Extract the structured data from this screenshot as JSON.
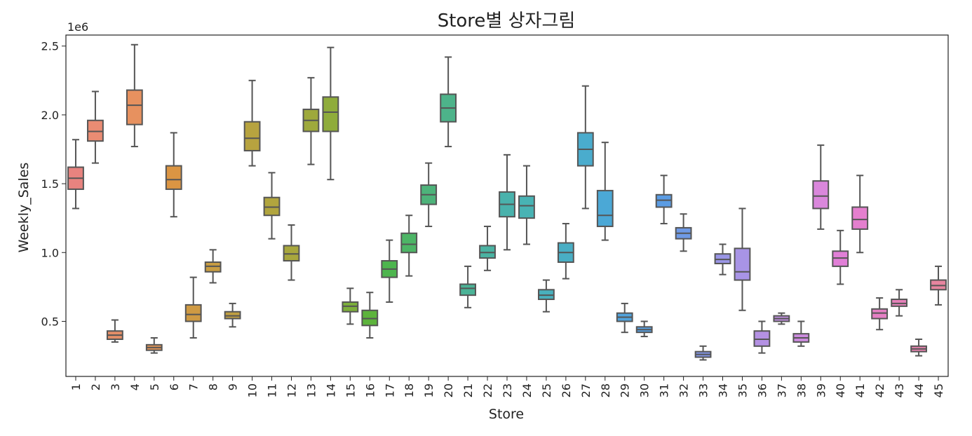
{
  "chart_data": {
    "type": "box",
    "title": "Store별 상자그림",
    "xlabel": "Store",
    "ylabel": "Weekly_Sales",
    "y_offset_label": "1e6",
    "y_scale": 1000000,
    "ylim": [
      0.1,
      2.58
    ],
    "yticks": [
      "0.5",
      "1.0",
      "1.5",
      "2.0",
      "2.5"
    ],
    "grid": false,
    "stores": [
      {
        "label": "1",
        "min": 1.32,
        "q1": 1.46,
        "median": 1.54,
        "q3": 1.62,
        "max": 1.82,
        "color": "#e8837f"
      },
      {
        "label": "2",
        "min": 1.65,
        "q1": 1.81,
        "median": 1.88,
        "q3": 1.96,
        "max": 2.17,
        "color": "#ea8c73"
      },
      {
        "label": "3",
        "min": 0.35,
        "q1": 0.37,
        "median": 0.4,
        "q3": 0.43,
        "max": 0.51,
        "color": "#e58f68"
      },
      {
        "label": "4",
        "min": 1.77,
        "q1": 1.93,
        "median": 2.07,
        "q3": 2.18,
        "max": 2.51,
        "color": "#e7915f"
      },
      {
        "label": "5",
        "min": 0.27,
        "q1": 0.29,
        "median": 0.31,
        "q3": 0.33,
        "max": 0.38,
        "color": "#e19457"
      },
      {
        "label": "6",
        "min": 1.26,
        "q1": 1.46,
        "median": 1.53,
        "q3": 1.63,
        "max": 1.87,
        "color": "#db9543"
      },
      {
        "label": "7",
        "min": 0.38,
        "q1": 0.5,
        "median": 0.55,
        "q3": 0.62,
        "max": 0.82,
        "color": "#cf9a43"
      },
      {
        "label": "8",
        "min": 0.78,
        "q1": 0.86,
        "median": 0.9,
        "q3": 0.93,
        "max": 1.02,
        "color": "#c99d42"
      },
      {
        "label": "9",
        "min": 0.46,
        "q1": 0.52,
        "median": 0.54,
        "q3": 0.57,
        "max": 0.63,
        "color": "#c09f41"
      },
      {
        "label": "10",
        "min": 1.63,
        "q1": 1.74,
        "median": 1.83,
        "q3": 1.95,
        "max": 2.25,
        "color": "#b7a33f"
      },
      {
        "label": "11",
        "min": 1.1,
        "q1": 1.27,
        "median": 1.33,
        "q3": 1.4,
        "max": 1.58,
        "color": "#b1a53e"
      },
      {
        "label": "12",
        "min": 0.8,
        "q1": 0.94,
        "median": 0.99,
        "q3": 1.05,
        "max": 1.2,
        "color": "#a8a73d"
      },
      {
        "label": "13",
        "min": 1.64,
        "q1": 1.88,
        "median": 1.96,
        "q3": 2.04,
        "max": 2.27,
        "color": "#9ea93c"
      },
      {
        "label": "14",
        "min": 1.53,
        "q1": 1.88,
        "median": 2.02,
        "q3": 2.13,
        "max": 2.49,
        "color": "#8fac3b"
      },
      {
        "label": "15",
        "min": 0.48,
        "q1": 0.57,
        "median": 0.61,
        "q3": 0.64,
        "max": 0.74,
        "color": "#7db03b"
      },
      {
        "label": "16",
        "min": 0.38,
        "q1": 0.47,
        "median": 0.52,
        "q3": 0.58,
        "max": 0.71,
        "color": "#5db43c"
      },
      {
        "label": "17",
        "min": 0.64,
        "q1": 0.82,
        "median": 0.88,
        "q3": 0.94,
        "max": 1.09,
        "color": "#4db54e"
      },
      {
        "label": "18",
        "min": 0.83,
        "q1": 1.0,
        "median": 1.06,
        "q3": 1.14,
        "max": 1.27,
        "color": "#4db566"
      },
      {
        "label": "19",
        "min": 1.19,
        "q1": 1.35,
        "median": 1.42,
        "q3": 1.49,
        "max": 1.65,
        "color": "#4db37a"
      },
      {
        "label": "20",
        "min": 1.77,
        "q1": 1.95,
        "median": 2.05,
        "q3": 2.15,
        "max": 2.42,
        "color": "#4db38a"
      },
      {
        "label": "21",
        "min": 0.6,
        "q1": 0.69,
        "median": 0.74,
        "q3": 0.77,
        "max": 0.9,
        "color": "#4bb397"
      },
      {
        "label": "22",
        "min": 0.87,
        "q1": 0.96,
        "median": 1.0,
        "q3": 1.05,
        "max": 1.19,
        "color": "#4ab3a2"
      },
      {
        "label": "23",
        "min": 1.02,
        "q1": 1.26,
        "median": 1.35,
        "q3": 1.44,
        "max": 1.71,
        "color": "#49b2ac"
      },
      {
        "label": "24",
        "min": 1.06,
        "q1": 1.25,
        "median": 1.34,
        "q3": 1.41,
        "max": 1.63,
        "color": "#48b3b4"
      },
      {
        "label": "25",
        "min": 0.57,
        "q1": 0.66,
        "median": 0.69,
        "q3": 0.73,
        "max": 0.8,
        "color": "#49b0bd"
      },
      {
        "label": "26",
        "min": 0.81,
        "q1": 0.93,
        "median": 1.0,
        "q3": 1.07,
        "max": 1.21,
        "color": "#49aec4"
      },
      {
        "label": "27",
        "min": 1.32,
        "q1": 1.63,
        "median": 1.75,
        "q3": 1.87,
        "max": 2.21,
        "color": "#4aaccd"
      },
      {
        "label": "28",
        "min": 1.09,
        "q1": 1.19,
        "median": 1.27,
        "q3": 1.45,
        "max": 1.8,
        "color": "#4ba8d6"
      },
      {
        "label": "29",
        "min": 0.42,
        "q1": 0.5,
        "median": 0.53,
        "q3": 0.56,
        "max": 0.63,
        "color": "#51a3dc"
      },
      {
        "label": "30",
        "min": 0.39,
        "q1": 0.42,
        "median": 0.44,
        "q3": 0.46,
        "max": 0.5,
        "color": "#569fe0"
      },
      {
        "label": "31",
        "min": 1.21,
        "q1": 1.33,
        "median": 1.38,
        "q3": 1.42,
        "max": 1.56,
        "color": "#5b9ce3"
      },
      {
        "label": "32",
        "min": 1.01,
        "q1": 1.1,
        "median": 1.14,
        "q3": 1.18,
        "max": 1.28,
        "color": "#6f9ae6"
      },
      {
        "label": "33",
        "min": 0.22,
        "q1": 0.24,
        "median": 0.26,
        "q3": 0.28,
        "max": 0.32,
        "color": "#8497e8"
      },
      {
        "label": "34",
        "min": 0.84,
        "q1": 0.92,
        "median": 0.95,
        "q3": 0.99,
        "max": 1.06,
        "color": "#9a96e6"
      },
      {
        "label": "35",
        "min": 0.58,
        "q1": 0.8,
        "median": 0.86,
        "q3": 1.03,
        "max": 1.32,
        "color": "#a894e6"
      },
      {
        "label": "36",
        "min": 0.27,
        "q1": 0.32,
        "median": 0.37,
        "q3": 0.43,
        "max": 0.5,
        "color": "#b491e3"
      },
      {
        "label": "37",
        "min": 0.48,
        "q1": 0.5,
        "median": 0.52,
        "q3": 0.54,
        "max": 0.56,
        "color": "#c18fe0"
      },
      {
        "label": "38",
        "min": 0.32,
        "q1": 0.35,
        "median": 0.38,
        "q3": 0.41,
        "max": 0.5,
        "color": "#cc8bde"
      },
      {
        "label": "39",
        "min": 1.17,
        "q1": 1.32,
        "median": 1.41,
        "q3": 1.52,
        "max": 1.78,
        "color": "#da87dc"
      },
      {
        "label": "40",
        "min": 0.77,
        "q1": 0.9,
        "median": 0.96,
        "q3": 1.01,
        "max": 1.16,
        "color": "#e17fd7"
      },
      {
        "label": "41",
        "min": 1.0,
        "q1": 1.17,
        "median": 1.24,
        "q3": 1.33,
        "max": 1.56,
        "color": "#e47fce"
      },
      {
        "label": "42",
        "min": 0.44,
        "q1": 0.52,
        "median": 0.56,
        "q3": 0.59,
        "max": 0.67,
        "color": "#e580c4"
      },
      {
        "label": "43",
        "min": 0.54,
        "q1": 0.61,
        "median": 0.63,
        "q3": 0.66,
        "max": 0.73,
        "color": "#e681ba"
      },
      {
        "label": "44",
        "min": 0.25,
        "q1": 0.28,
        "median": 0.3,
        "q3": 0.32,
        "max": 0.37,
        "color": "#e683ae"
      },
      {
        "label": "45",
        "min": 0.62,
        "q1": 0.73,
        "median": 0.76,
        "q3": 0.8,
        "max": 0.9,
        "color": "#e7859f"
      }
    ]
  }
}
